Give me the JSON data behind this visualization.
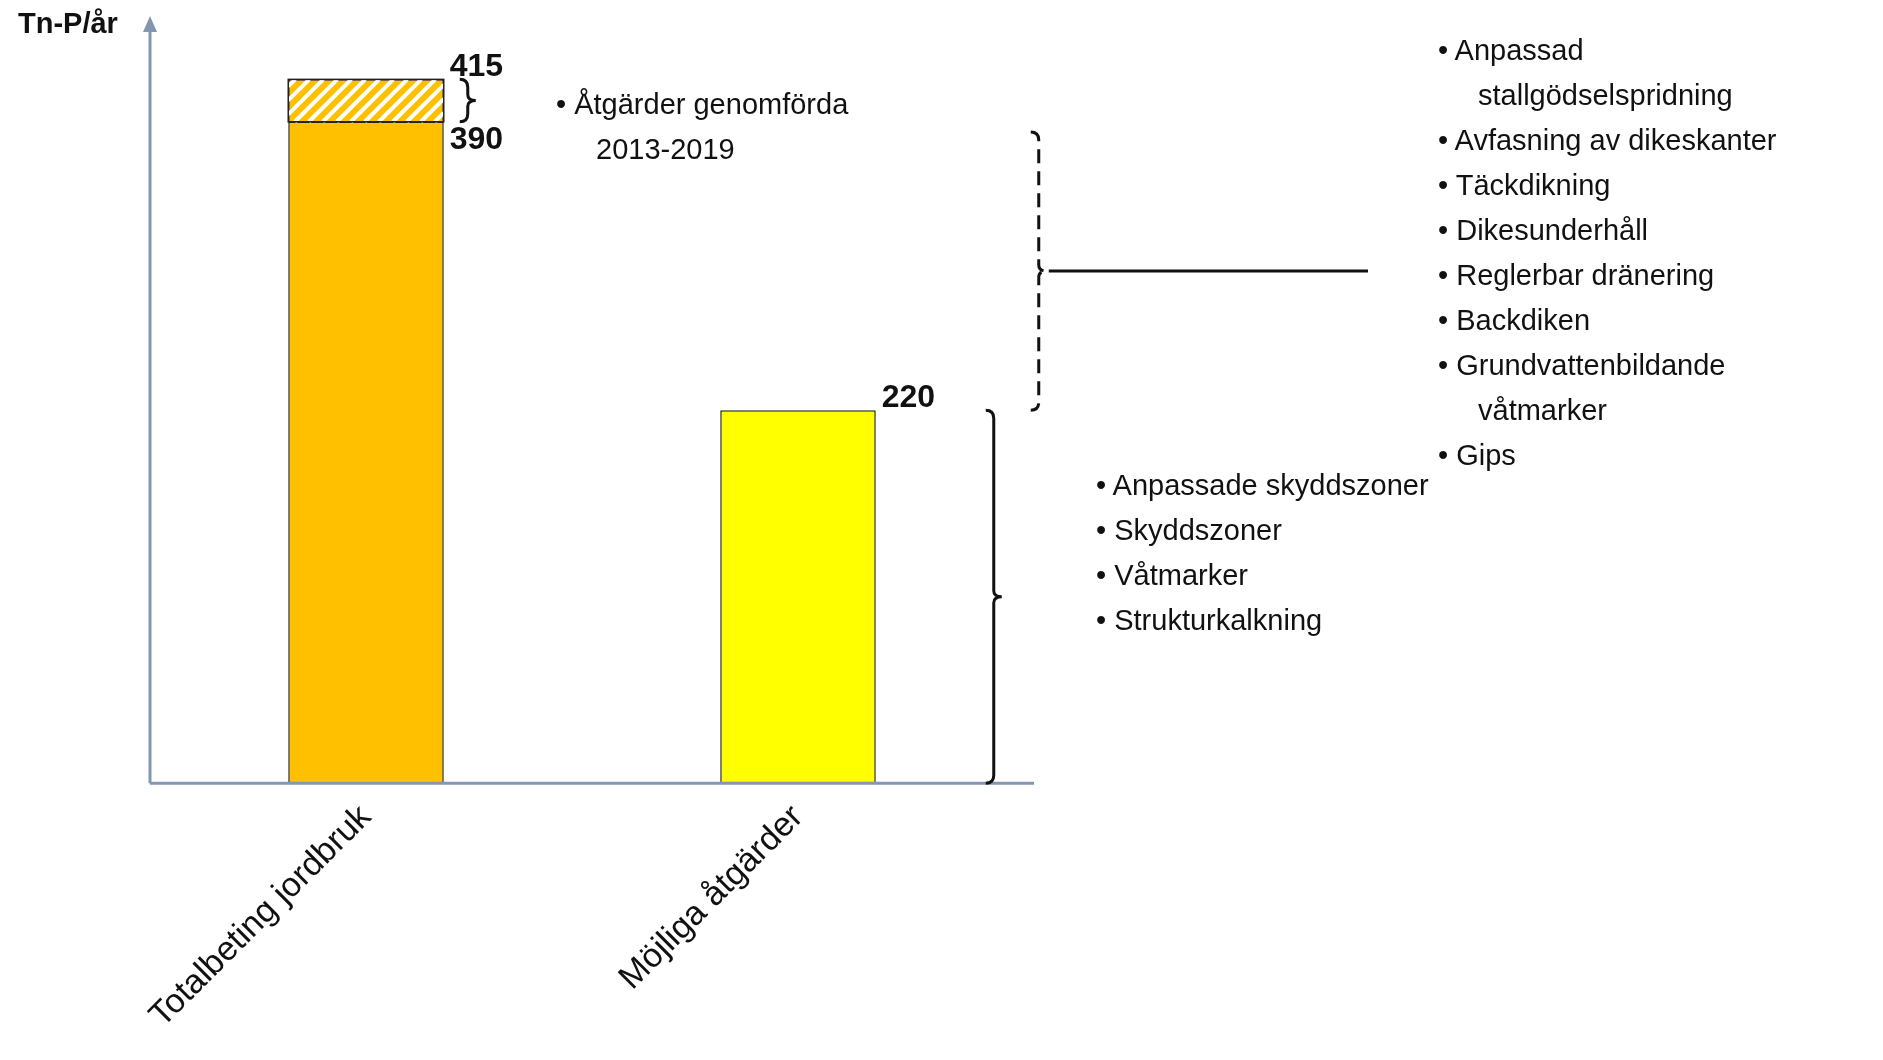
{
  "chart_data": {
    "type": "bar",
    "stacked": true,
    "ylabel": "Tn-P/år",
    "categories": [
      "Totalbeting jordbruk",
      "Möjliga åtgärder"
    ],
    "series": [
      {
        "colors": [
          "#ffc000",
          "#ffff00"
        ],
        "values": [
          390,
          220
        ],
        "value_labels": [
          "390",
          null
        ]
      },
      {
        "color": "#ffc000",
        "values": [
          25,
          null
        ]
      }
    ],
    "totals": [
      "415",
      "220"
    ],
    "ylim": [
      0,
      450
    ],
    "tick_labels": "x",
    "grid": false,
    "legend": false,
    "annotations": [
      "• Åtgärder genomförda 2013-2019",
      "• Anpassad stallgödselspridning\n• Avfasning av dikeskanter\n• Täckdikning\n• Dikesunderhåll\n• Reglerbar dränering\n• Backdiken\n• Grundvattenbildande våtmarker\n• Gips",
      "• Anpassade skyddszoner\n• Skyddszoner\n• Våtmarker\n• Strukturkalkning"
    ]
  }
}
